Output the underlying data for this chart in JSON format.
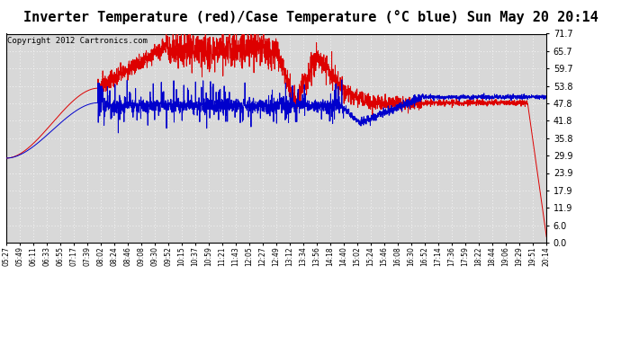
{
  "title": "Inverter Temperature (red)/Case Temperature (°C blue) Sun May 20 20:14",
  "copyright": "Copyright 2012 Cartronics.com",
  "yticks": [
    0.0,
    6.0,
    11.9,
    17.9,
    23.9,
    29.9,
    35.8,
    41.8,
    47.8,
    53.8,
    59.7,
    65.7,
    71.7
  ],
  "ymin": 0.0,
  "ymax": 71.7,
  "xtick_labels": [
    "05:27",
    "05:49",
    "06:11",
    "06:33",
    "06:55",
    "07:17",
    "07:39",
    "08:02",
    "08:24",
    "08:46",
    "09:08",
    "09:30",
    "09:52",
    "10:15",
    "10:37",
    "10:59",
    "11:21",
    "11:43",
    "12:05",
    "12:27",
    "12:49",
    "13:12",
    "13:34",
    "13:56",
    "14:18",
    "14:40",
    "15:02",
    "15:24",
    "15:46",
    "16:08",
    "16:30",
    "16:52",
    "17:14",
    "17:36",
    "17:59",
    "18:22",
    "18:44",
    "19:06",
    "19:29",
    "19:51",
    "20:14"
  ],
  "bg_color": "#ffffff",
  "plot_bg_color": "#d8d8d8",
  "grid_color": "#ffffff",
  "line_red_color": "#dd0000",
  "line_blue_color": "#0000cc",
  "title_fontsize": 11,
  "copyright_fontsize": 6.5
}
